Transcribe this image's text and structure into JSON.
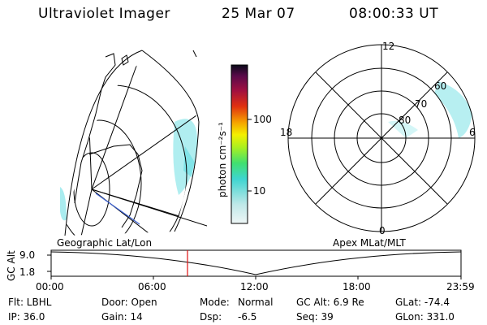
{
  "header": {
    "title": "Ultraviolet Imager",
    "date": "25 Mar 07",
    "time": "08:00:33 UT"
  },
  "colorbar": {
    "unit_label": "photon cm⁻²s⁻¹",
    "tick_100": "100",
    "tick_10": "10"
  },
  "polar_plot": {
    "lat_labels": [
      "80",
      "70",
      "60"
    ],
    "mlt_labels": {
      "top": "12",
      "bottom": "0",
      "left": "18",
      "right": "6"
    }
  },
  "map_labels": {
    "left": "Geographic Lat/Lon",
    "right": "Apex MLat/MLT"
  },
  "altitude_plot": {
    "ylabel": "GC Alt",
    "y_ticks": [
      "9.0",
      "1.8"
    ],
    "x_ticks": [
      "00:00",
      "06:00",
      "12:00",
      "18:00",
      "23:59"
    ]
  },
  "info": {
    "row1": {
      "filter": "Flt: LBHL",
      "door": "Door: Open",
      "mode_label": "Mode:",
      "mode_value": "Normal",
      "gc_alt": "GC Alt: 6.9 Re",
      "glat": "GLat: -74.4"
    },
    "row2": {
      "ip": "IP: 36.0",
      "gain": "Gain: 14",
      "dsp_label": "Dsp:",
      "dsp_value": "-6.5",
      "seq": "Seq: 39",
      "glon": "GLon: 331.0"
    }
  },
  "colors": {
    "aurora": "#6fe0e4",
    "track_line": "#3a5fd0",
    "time_marker": "#e01010"
  }
}
